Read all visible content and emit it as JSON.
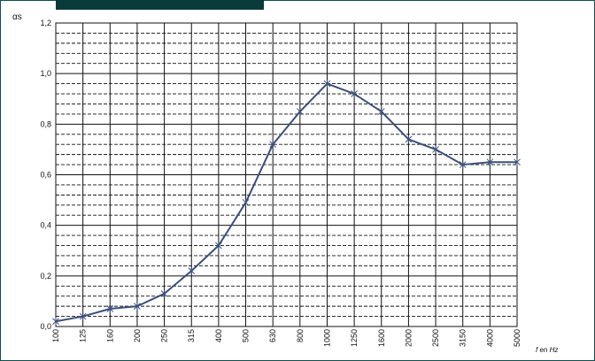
{
  "chart_data": {
    "type": "line",
    "ylabel": "αs",
    "xlabel": "f en Hz",
    "categories": [
      "100",
      "125",
      "160",
      "200",
      "250",
      "315",
      "400",
      "500",
      "630",
      "800",
      "1000",
      "1250",
      "1600",
      "2000",
      "2500",
      "3150",
      "4000",
      "5000"
    ],
    "series": [
      {
        "values": [
          0.02,
          0.04,
          0.07,
          0.08,
          0.13,
          0.22,
          0.32,
          0.49,
          0.72,
          0.85,
          0.96,
          0.92,
          0.85,
          0.74,
          0.7,
          0.64,
          0.65,
          0.65
        ]
      }
    ],
    "ylim": [
      0,
      1.2
    ],
    "yticks": [
      "0,0",
      "0,2",
      "0,4",
      "0,6",
      "0,8",
      "1,0",
      "1,2"
    ],
    "grid": true,
    "colors": {
      "line": "#3a4f7a",
      "grid": "#111111",
      "frame": "#0f4f4f",
      "header": "#0b3a3a"
    }
  }
}
